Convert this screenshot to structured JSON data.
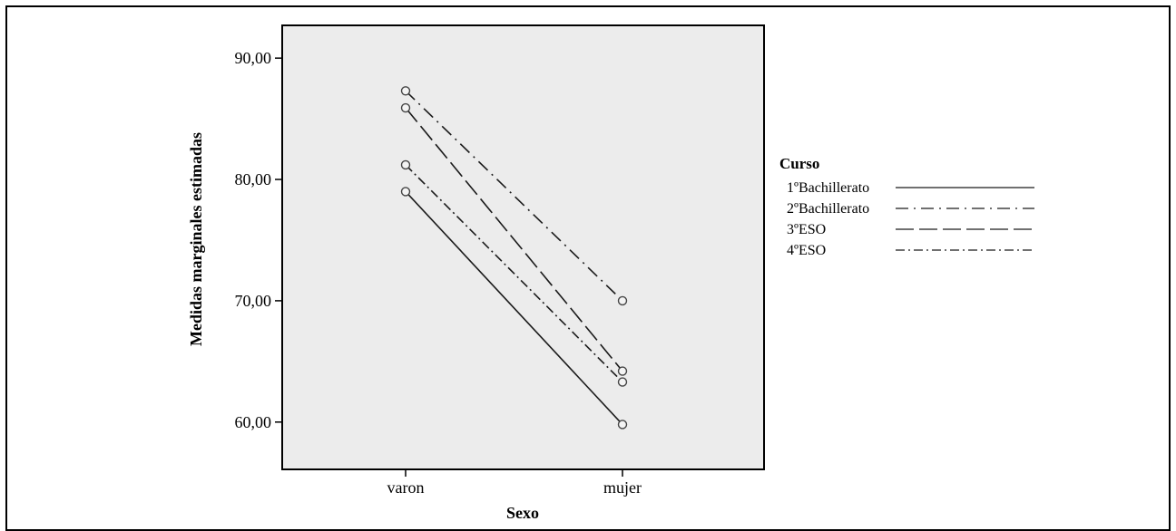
{
  "chart_data": {
    "type": "line",
    "title": "",
    "xlabel": "Sexo",
    "ylabel": "Medidas marginales estimadas",
    "categories": [
      "varon",
      "mujer"
    ],
    "yticks": [
      "60,00",
      "70,00",
      "80,00",
      "90,00"
    ],
    "ytick_values": [
      60,
      70,
      80,
      90
    ],
    "ylim": [
      56.1,
      92.7
    ],
    "grid": false,
    "legend": {
      "title": "Curso",
      "placement": "right"
    },
    "series": [
      {
        "name": "1ºBachillerato",
        "values": [
          79.0,
          59.8
        ],
        "dash": ""
      },
      {
        "name": "2ºBachillerato",
        "values": [
          87.3,
          70.0
        ],
        "dash": "14 6 2 6"
      },
      {
        "name": "3ºESO",
        "values": [
          85.9,
          64.2
        ],
        "dash": "20 6"
      },
      {
        "name": "4ºESO",
        "values": [
          81.2,
          63.3
        ],
        "dash": "10 4 2 4"
      }
    ]
  }
}
